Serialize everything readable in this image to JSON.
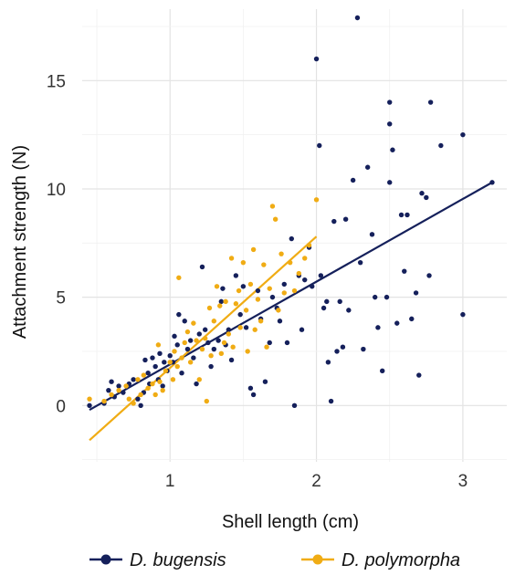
{
  "chart_data": {
    "type": "scatter",
    "title": "",
    "xlabel": "Shell length (cm)",
    "ylabel": "Attachment strength (N)",
    "xlim": [
      0.4,
      3.3
    ],
    "ylim": [
      -2.6,
      18.3
    ],
    "x_ticks": [
      1,
      2,
      3
    ],
    "y_ticks": [
      0,
      5,
      10,
      15
    ],
    "grid": true,
    "legend_position": "bottom",
    "series": [
      {
        "name": "D. bugensis",
        "color": "#15205b",
        "points": [
          [
            0.45,
            0.0
          ],
          [
            0.55,
            0.1
          ],
          [
            0.58,
            0.7
          ],
          [
            0.6,
            1.1
          ],
          [
            0.62,
            0.4
          ],
          [
            0.65,
            0.9
          ],
          [
            0.68,
            0.6
          ],
          [
            0.72,
            1.0
          ],
          [
            0.75,
            1.2
          ],
          [
            0.78,
            0.3
          ],
          [
            0.8,
            0.0
          ],
          [
            0.82,
            0.6
          ],
          [
            0.83,
            2.1
          ],
          [
            0.85,
            1.5
          ],
          [
            0.86,
            1.0
          ],
          [
            0.88,
            2.2
          ],
          [
            0.9,
            1.8
          ],
          [
            0.92,
            1.2
          ],
          [
            0.93,
            2.4
          ],
          [
            0.95,
            0.9
          ],
          [
            0.96,
            2.0
          ],
          [
            0.98,
            1.6
          ],
          [
            1.0,
            2.3
          ],
          [
            1.02,
            2.0
          ],
          [
            1.03,
            3.2
          ],
          [
            1.05,
            2.8
          ],
          [
            1.06,
            4.2
          ],
          [
            1.08,
            1.5
          ],
          [
            1.1,
            3.9
          ],
          [
            1.12,
            2.6
          ],
          [
            1.14,
            3.0
          ],
          [
            1.16,
            2.2
          ],
          [
            1.18,
            1.0
          ],
          [
            1.2,
            3.3
          ],
          [
            1.22,
            6.4
          ],
          [
            1.24,
            3.5
          ],
          [
            1.26,
            2.9
          ],
          [
            1.28,
            1.8
          ],
          [
            1.3,
            2.6
          ],
          [
            1.33,
            3.0
          ],
          [
            1.35,
            4.8
          ],
          [
            1.36,
            5.4
          ],
          [
            1.38,
            2.8
          ],
          [
            1.4,
            3.5
          ],
          [
            1.42,
            2.1
          ],
          [
            1.45,
            6.0
          ],
          [
            1.48,
            4.2
          ],
          [
            1.5,
            5.5
          ],
          [
            1.52,
            3.6
          ],
          [
            1.55,
            0.8
          ],
          [
            1.57,
            0.5
          ],
          [
            1.6,
            5.3
          ],
          [
            1.62,
            4.0
          ],
          [
            1.65,
            1.1
          ],
          [
            1.68,
            2.9
          ],
          [
            1.7,
            5.0
          ],
          [
            1.73,
            4.5
          ],
          [
            1.75,
            3.9
          ],
          [
            1.78,
            5.6
          ],
          [
            1.8,
            2.9
          ],
          [
            1.83,
            7.7
          ],
          [
            1.85,
            0.0
          ],
          [
            1.88,
            6.0
          ],
          [
            1.9,
            3.5
          ],
          [
            1.92,
            5.8
          ],
          [
            1.95,
            7.3
          ],
          [
            1.97,
            5.5
          ],
          [
            2.0,
            16.0
          ],
          [
            2.02,
            12.0
          ],
          [
            2.03,
            6.0
          ],
          [
            2.05,
            4.5
          ],
          [
            2.07,
            4.8
          ],
          [
            2.08,
            2.0
          ],
          [
            2.1,
            0.2
          ],
          [
            2.12,
            8.5
          ],
          [
            2.14,
            2.5
          ],
          [
            2.16,
            4.8
          ],
          [
            2.18,
            2.7
          ],
          [
            2.2,
            8.6
          ],
          [
            2.22,
            4.4
          ],
          [
            2.25,
            10.4
          ],
          [
            2.28,
            17.9
          ],
          [
            2.3,
            6.6
          ],
          [
            2.32,
            2.6
          ],
          [
            2.35,
            11.0
          ],
          [
            2.38,
            7.9
          ],
          [
            2.4,
            5.0
          ],
          [
            2.42,
            3.6
          ],
          [
            2.45,
            1.6
          ],
          [
            2.48,
            5.0
          ],
          [
            2.5,
            10.3
          ],
          [
            2.5,
            13.0
          ],
          [
            2.5,
            14.0
          ],
          [
            2.52,
            11.8
          ],
          [
            2.55,
            3.8
          ],
          [
            2.58,
            8.8
          ],
          [
            2.6,
            6.2
          ],
          [
            2.62,
            8.8
          ],
          [
            2.65,
            4.0
          ],
          [
            2.68,
            5.2
          ],
          [
            2.7,
            1.4
          ],
          [
            2.72,
            9.8
          ],
          [
            2.75,
            9.6
          ],
          [
            2.77,
            6.0
          ],
          [
            2.78,
            14.0
          ],
          [
            2.85,
            12.0
          ],
          [
            3.0,
            12.5
          ],
          [
            3.0,
            4.2
          ],
          [
            3.2,
            10.3
          ]
        ],
        "fit": [
          [
            0.45,
            -0.2
          ],
          [
            3.2,
            10.3
          ]
        ]
      },
      {
        "name": "D. polymorpha",
        "color": "#f0ac14",
        "points": [
          [
            0.45,
            0.3
          ],
          [
            0.55,
            0.2
          ],
          [
            0.6,
            0.5
          ],
          [
            0.65,
            0.7
          ],
          [
            0.7,
            0.9
          ],
          [
            0.72,
            0.3
          ],
          [
            0.75,
            0.1
          ],
          [
            0.78,
            1.2
          ],
          [
            0.8,
            0.5
          ],
          [
            0.82,
            1.4
          ],
          [
            0.85,
            0.8
          ],
          [
            0.88,
            1.0
          ],
          [
            0.9,
            0.5
          ],
          [
            0.92,
            2.8
          ],
          [
            0.93,
            1.1
          ],
          [
            0.95,
            0.7
          ],
          [
            0.97,
            1.6
          ],
          [
            1.0,
            2.0
          ],
          [
            1.02,
            1.2
          ],
          [
            1.03,
            2.5
          ],
          [
            1.05,
            1.8
          ],
          [
            1.06,
            5.9
          ],
          [
            1.08,
            2.2
          ],
          [
            1.1,
            2.9
          ],
          [
            1.12,
            3.4
          ],
          [
            1.14,
            2.0
          ],
          [
            1.16,
            3.8
          ],
          [
            1.18,
            3.0
          ],
          [
            1.2,
            1.2
          ],
          [
            1.22,
            2.6
          ],
          [
            1.24,
            3.1
          ],
          [
            1.25,
            0.2
          ],
          [
            1.27,
            4.5
          ],
          [
            1.28,
            2.3
          ],
          [
            1.3,
            3.9
          ],
          [
            1.32,
            5.5
          ],
          [
            1.34,
            4.6
          ],
          [
            1.35,
            2.4
          ],
          [
            1.37,
            2.9
          ],
          [
            1.38,
            4.8
          ],
          [
            1.4,
            3.3
          ],
          [
            1.42,
            6.8
          ],
          [
            1.43,
            2.7
          ],
          [
            1.45,
            4.7
          ],
          [
            1.47,
            5.3
          ],
          [
            1.48,
            3.6
          ],
          [
            1.5,
            6.6
          ],
          [
            1.52,
            4.4
          ],
          [
            1.53,
            2.5
          ],
          [
            1.55,
            5.6
          ],
          [
            1.57,
            7.2
          ],
          [
            1.58,
            3.5
          ],
          [
            1.6,
            4.9
          ],
          [
            1.62,
            3.9
          ],
          [
            1.64,
            6.5
          ],
          [
            1.66,
            2.7
          ],
          [
            1.68,
            5.4
          ],
          [
            1.7,
            9.2
          ],
          [
            1.72,
            8.6
          ],
          [
            1.74,
            4.4
          ],
          [
            1.76,
            7.0
          ],
          [
            1.78,
            5.2
          ],
          [
            1.82,
            6.6
          ],
          [
            1.85,
            5.3
          ],
          [
            1.88,
            6.1
          ],
          [
            1.92,
            6.8
          ],
          [
            1.95,
            7.4
          ],
          [
            2.0,
            9.5
          ]
        ],
        "fit": [
          [
            0.45,
            -1.6
          ],
          [
            2.0,
            7.8
          ]
        ]
      }
    ]
  }
}
